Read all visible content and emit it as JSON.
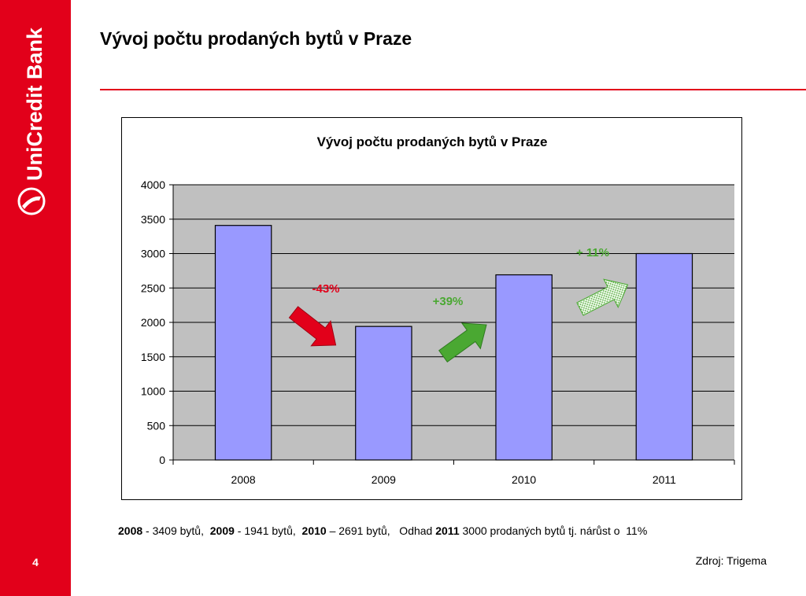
{
  "brand": {
    "name": "UniCredit Bank",
    "color": "#e2001a"
  },
  "slide": {
    "title": "Vývoj počtu prodaných bytů v Praze",
    "page_number": "4"
  },
  "chart_data": {
    "type": "bar",
    "title": "Vývoj počtu prodaných bytů v Praze",
    "categories": [
      "2008",
      "2009",
      "2010",
      "2011"
    ],
    "values": [
      3409,
      1941,
      2691,
      3000
    ],
    "ylim": [
      0,
      4000
    ],
    "yticks": [
      0,
      500,
      1000,
      1500,
      2000,
      2500,
      3000,
      3500,
      4000
    ],
    "grid": true,
    "legend": "none",
    "bar_color": "#9999ff",
    "plot_background": "#c0c0c0",
    "annotations": [
      {
        "text": "-43%",
        "color": "#e2001a",
        "arrow": "down-right",
        "between": [
          "2008",
          "2009"
        ]
      },
      {
        "text": "+39%",
        "color": "#4aa832",
        "arrow": "up-right",
        "between": [
          "2009",
          "2010"
        ]
      },
      {
        "text": "+ 11%",
        "color": "#4aa832",
        "arrow": "up-right-dotted",
        "between": [
          "2010",
          "2011"
        ]
      }
    ]
  },
  "summary": {
    "y2008": "2008",
    "t2008": " - 3409 bytů,  ",
    "y2009": "2009",
    "t2009": " - 1941 bytů,  ",
    "y2010": "2010",
    "t2010": " – 2691 bytů,   Odhad ",
    "y2011": "2011",
    "t2011": " 3000 prodaných bytů tj. nárůst o  11%"
  },
  "source": "Zdroj: Trigema"
}
